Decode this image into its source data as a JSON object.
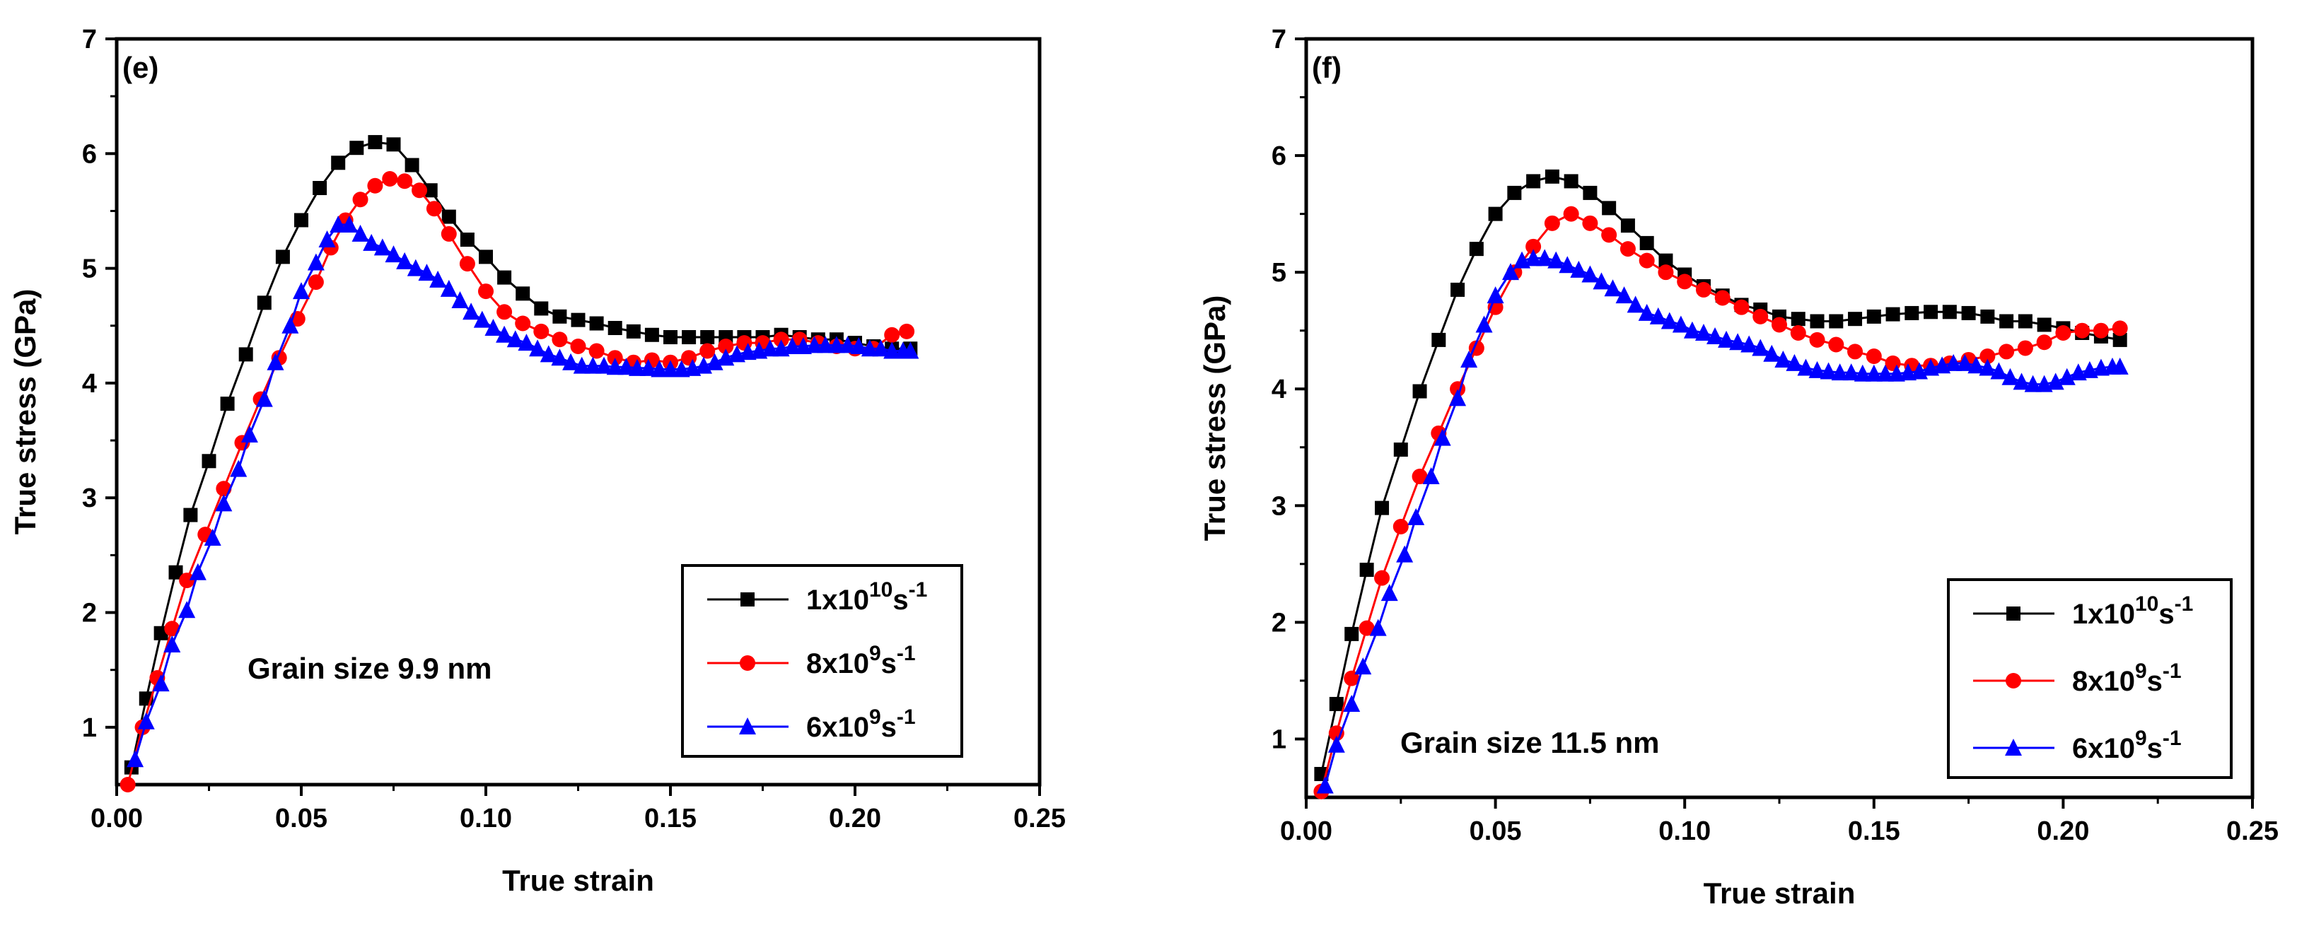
{
  "chart_data": [
    {
      "type": "line",
      "panel_label": "(e)",
      "xlabel": "True strain",
      "ylabel": "True stress (GPa)",
      "xlim": [
        0.0,
        0.25
      ],
      "ylim": [
        0.5,
        7
      ],
      "xticks": [
        "0.00",
        "0.05",
        "0.10",
        "0.15",
        "0.20",
        "0.25"
      ],
      "yticks": [
        "1",
        "2",
        "3",
        "4",
        "5",
        "6",
        "7"
      ],
      "xtick_values": [
        0.0,
        0.05,
        0.1,
        0.15,
        0.2,
        0.25
      ],
      "ytick_values": [
        1,
        2,
        3,
        4,
        5,
        6,
        7
      ],
      "annotation": "Grain size 9.9 nm",
      "legend_position": "bottom-right",
      "series": [
        {
          "name": "1x10^10 s^-1",
          "legend": {
            "coef": "1x10",
            "exp": "10",
            "unit": "s",
            "unit_exp": "-1"
          },
          "color": "#000000",
          "marker": "square",
          "x": [
            0.004,
            0.008,
            0.012,
            0.016,
            0.02,
            0.025,
            0.03,
            0.035,
            0.04,
            0.045,
            0.05,
            0.055,
            0.06,
            0.065,
            0.07,
            0.075,
            0.08,
            0.085,
            0.09,
            0.095,
            0.1,
            0.105,
            0.11,
            0.115,
            0.12,
            0.125,
            0.13,
            0.135,
            0.14,
            0.145,
            0.15,
            0.155,
            0.16,
            0.165,
            0.17,
            0.175,
            0.18,
            0.185,
            0.19,
            0.195,
            0.2,
            0.205,
            0.21,
            0.215
          ],
          "y": [
            0.65,
            1.25,
            1.82,
            2.35,
            2.85,
            3.32,
            3.82,
            4.25,
            4.7,
            5.1,
            5.42,
            5.7,
            5.92,
            6.05,
            6.1,
            6.08,
            5.9,
            5.68,
            5.45,
            5.25,
            5.1,
            4.92,
            4.78,
            4.65,
            4.58,
            4.55,
            4.52,
            4.48,
            4.45,
            4.42,
            4.4,
            4.4,
            4.4,
            4.4,
            4.4,
            4.4,
            4.42,
            4.4,
            4.38,
            4.38,
            4.35,
            4.32,
            4.3,
            4.3
          ]
        },
        {
          "name": "8x10^9 s^-1",
          "legend": {
            "coef": "8x10",
            "exp": "9",
            "unit": "s",
            "unit_exp": "-1"
          },
          "color": "#ff0000",
          "marker": "circle",
          "x": [
            0.003,
            0.007,
            0.011,
            0.015,
            0.019,
            0.024,
            0.029,
            0.034,
            0.039,
            0.044,
            0.049,
            0.054,
            0.058,
            0.062,
            0.066,
            0.07,
            0.074,
            0.078,
            0.082,
            0.086,
            0.09,
            0.095,
            0.1,
            0.105,
            0.11,
            0.115,
            0.12,
            0.125,
            0.13,
            0.135,
            0.14,
            0.145,
            0.15,
            0.155,
            0.16,
            0.165,
            0.17,
            0.175,
            0.18,
            0.185,
            0.19,
            0.195,
            0.2,
            0.205,
            0.21,
            0.214
          ],
          "y": [
            0.5,
            1.0,
            1.43,
            1.86,
            2.28,
            2.68,
            3.08,
            3.48,
            3.86,
            4.22,
            4.56,
            4.88,
            5.18,
            5.42,
            5.6,
            5.72,
            5.78,
            5.76,
            5.68,
            5.52,
            5.3,
            5.04,
            4.8,
            4.62,
            4.52,
            4.45,
            4.38,
            4.32,
            4.28,
            4.22,
            4.18,
            4.2,
            4.18,
            4.22,
            4.28,
            4.32,
            4.35,
            4.35,
            4.38,
            4.38,
            4.35,
            4.32,
            4.3,
            4.3,
            4.42,
            4.45
          ]
        },
        {
          "name": "6x10^9 s^-1",
          "legend": {
            "coef": "6x10",
            "exp": "9",
            "unit": "s",
            "unit_exp": "-1"
          },
          "color": "#0000ff",
          "marker": "triangle",
          "x": [
            0.005,
            0.008,
            0.012,
            0.015,
            0.019,
            0.022,
            0.026,
            0.029,
            0.033,
            0.036,
            0.04,
            0.043,
            0.047,
            0.05,
            0.054,
            0.057,
            0.06,
            0.063,
            0.066,
            0.069,
            0.072,
            0.075,
            0.078,
            0.081,
            0.084,
            0.087,
            0.09,
            0.093,
            0.096,
            0.099,
            0.102,
            0.105,
            0.108,
            0.111,
            0.114,
            0.117,
            0.12,
            0.123,
            0.126,
            0.129,
            0.132,
            0.135,
            0.138,
            0.141,
            0.144,
            0.147,
            0.15,
            0.153,
            0.156,
            0.159,
            0.162,
            0.165,
            0.168,
            0.171,
            0.174,
            0.177,
            0.18,
            0.183,
            0.186,
            0.189,
            0.192,
            0.195,
            0.198,
            0.201,
            0.204,
            0.207,
            0.21,
            0.213,
            0.215
          ],
          "y": [
            0.72,
            1.05,
            1.38,
            1.72,
            2.02,
            2.35,
            2.65,
            2.95,
            3.25,
            3.55,
            3.86,
            4.18,
            4.5,
            4.8,
            5.05,
            5.25,
            5.38,
            5.38,
            5.3,
            5.22,
            5.18,
            5.12,
            5.06,
            5.0,
            4.96,
            4.9,
            4.82,
            4.72,
            4.62,
            4.55,
            4.48,
            4.42,
            4.38,
            4.35,
            4.3,
            4.25,
            4.22,
            4.18,
            4.15,
            4.15,
            4.15,
            4.14,
            4.14,
            4.13,
            4.13,
            4.12,
            4.12,
            4.12,
            4.13,
            4.15,
            4.18,
            4.22,
            4.25,
            4.27,
            4.28,
            4.3,
            4.3,
            4.32,
            4.32,
            4.33,
            4.33,
            4.33,
            4.33,
            4.32,
            4.3,
            4.3,
            4.28,
            4.28,
            4.28
          ]
        }
      ]
    },
    {
      "type": "line",
      "panel_label": "(f)",
      "xlabel": "True strain",
      "ylabel": "True stress (GPa)",
      "xlim": [
        0.0,
        0.25
      ],
      "ylim": [
        0.5,
        7
      ],
      "xticks": [
        "0.00",
        "0.05",
        "0.10",
        "0.15",
        "0.20",
        "0.25"
      ],
      "yticks": [
        "1",
        "2",
        "3",
        "4",
        "5",
        "6",
        "7"
      ],
      "xtick_values": [
        0.0,
        0.05,
        0.1,
        0.15,
        0.2,
        0.25
      ],
      "ytick_values": [
        1,
        2,
        3,
        4,
        5,
        6,
        7
      ],
      "annotation": "Grain size 11.5 nm",
      "legend_position": "bottom-right",
      "series": [
        {
          "name": "1x10^10 s^-1",
          "legend": {
            "coef": "1x10",
            "exp": "10",
            "unit": "s",
            "unit_exp": "-1"
          },
          "color": "#000000",
          "marker": "square",
          "x": [
            0.004,
            0.008,
            0.012,
            0.016,
            0.02,
            0.025,
            0.03,
            0.035,
            0.04,
            0.045,
            0.05,
            0.055,
            0.06,
            0.065,
            0.07,
            0.075,
            0.08,
            0.085,
            0.09,
            0.095,
            0.1,
            0.105,
            0.11,
            0.115,
            0.12,
            0.125,
            0.13,
            0.135,
            0.14,
            0.145,
            0.15,
            0.155,
            0.16,
            0.165,
            0.17,
            0.175,
            0.18,
            0.185,
            0.19,
            0.195,
            0.2,
            0.205,
            0.21,
            0.215
          ],
          "y": [
            0.7,
            1.3,
            1.9,
            2.45,
            2.98,
            3.48,
            3.98,
            4.42,
            4.85,
            5.2,
            5.5,
            5.68,
            5.78,
            5.82,
            5.78,
            5.68,
            5.55,
            5.4,
            5.25,
            5.1,
            4.98,
            4.88,
            4.8,
            4.72,
            4.68,
            4.62,
            4.6,
            4.58,
            4.58,
            4.6,
            4.62,
            4.64,
            4.65,
            4.66,
            4.66,
            4.65,
            4.62,
            4.58,
            4.58,
            4.55,
            4.52,
            4.48,
            4.45,
            4.42
          ]
        },
        {
          "name": "8x10^9 s^-1",
          "legend": {
            "coef": "8x10",
            "exp": "9",
            "unit": "s",
            "unit_exp": "-1"
          },
          "color": "#ff0000",
          "marker": "circle",
          "x": [
            0.004,
            0.008,
            0.012,
            0.016,
            0.02,
            0.025,
            0.03,
            0.035,
            0.04,
            0.045,
            0.05,
            0.055,
            0.06,
            0.065,
            0.07,
            0.075,
            0.08,
            0.085,
            0.09,
            0.095,
            0.1,
            0.105,
            0.11,
            0.115,
            0.12,
            0.125,
            0.13,
            0.135,
            0.14,
            0.145,
            0.15,
            0.155,
            0.16,
            0.165,
            0.17,
            0.175,
            0.18,
            0.185,
            0.19,
            0.195,
            0.2,
            0.205,
            0.21,
            0.215
          ],
          "y": [
            0.55,
            1.05,
            1.52,
            1.95,
            2.38,
            2.82,
            3.25,
            3.62,
            4.0,
            4.35,
            4.7,
            5.0,
            5.22,
            5.42,
            5.5,
            5.42,
            5.32,
            5.2,
            5.1,
            5.0,
            4.92,
            4.85,
            4.78,
            4.7,
            4.62,
            4.55,
            4.48,
            4.42,
            4.38,
            4.32,
            4.28,
            4.22,
            4.2,
            4.2,
            4.22,
            4.25,
            4.28,
            4.32,
            4.35,
            4.4,
            4.48,
            4.5,
            4.5,
            4.52
          ]
        },
        {
          "name": "6x10^9 s^-1",
          "legend": {
            "coef": "6x10",
            "exp": "9",
            "unit": "s",
            "unit_exp": "-1"
          },
          "color": "#0000ff",
          "marker": "triangle",
          "x": [
            0.005,
            0.008,
            0.012,
            0.015,
            0.019,
            0.022,
            0.026,
            0.029,
            0.033,
            0.036,
            0.04,
            0.043,
            0.047,
            0.05,
            0.054,
            0.057,
            0.06,
            0.063,
            0.066,
            0.069,
            0.072,
            0.075,
            0.078,
            0.081,
            0.084,
            0.087,
            0.09,
            0.093,
            0.096,
            0.099,
            0.102,
            0.105,
            0.108,
            0.111,
            0.114,
            0.117,
            0.12,
            0.123,
            0.126,
            0.129,
            0.132,
            0.135,
            0.138,
            0.141,
            0.144,
            0.147,
            0.15,
            0.153,
            0.156,
            0.159,
            0.162,
            0.165,
            0.168,
            0.171,
            0.174,
            0.177,
            0.18,
            0.183,
            0.186,
            0.189,
            0.192,
            0.195,
            0.198,
            0.201,
            0.204,
            0.207,
            0.21,
            0.213,
            0.215
          ],
          "y": [
            0.6,
            0.95,
            1.3,
            1.62,
            1.95,
            2.25,
            2.58,
            2.9,
            3.25,
            3.58,
            3.92,
            4.25,
            4.55,
            4.8,
            5.0,
            5.1,
            5.12,
            5.12,
            5.1,
            5.06,
            5.02,
            4.98,
            4.92,
            4.86,
            4.8,
            4.72,
            4.65,
            4.62,
            4.58,
            4.55,
            4.5,
            4.48,
            4.45,
            4.42,
            4.4,
            4.38,
            4.35,
            4.3,
            4.25,
            4.22,
            4.18,
            4.16,
            4.15,
            4.14,
            4.14,
            4.13,
            4.13,
            4.13,
            4.13,
            4.14,
            4.15,
            4.18,
            4.2,
            4.22,
            4.22,
            4.2,
            4.18,
            4.15,
            4.1,
            4.06,
            4.04,
            4.04,
            4.06,
            4.1,
            4.14,
            4.16,
            4.18,
            4.19,
            4.19
          ]
        }
      ]
    }
  ]
}
